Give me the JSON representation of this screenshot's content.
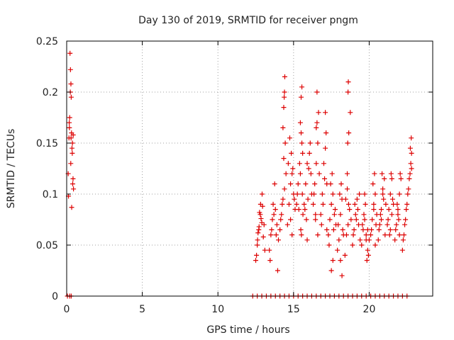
{
  "chart_data": {
    "type": "scatter",
    "title": "Day 130 of 2019, SRMTID for receiver pngm",
    "xlabel": "GPS time / hours",
    "ylabel": "SRMTID / TECUs",
    "xlim": [
      0,
      24.2
    ],
    "ylim": [
      0,
      0.25
    ],
    "x_ticks": [
      0,
      5,
      10,
      15,
      20
    ],
    "x_tick_labels": [
      "0",
      "5",
      "10",
      "15",
      "20"
    ],
    "y_ticks": [
      0,
      0.05,
      0.1,
      0.15,
      0.2,
      0.25
    ],
    "y_tick_labels": [
      "0",
      "0.05",
      "0.1",
      "0.15",
      "0.2",
      "0.25"
    ],
    "grid": true,
    "marker": "+",
    "color": "#dd0000",
    "series": [
      {
        "name": "SRMTID",
        "x": [
          0.1,
          0.15,
          0.18,
          0.2,
          0.22,
          0.25,
          0.28,
          0.3,
          0.32,
          0.35,
          0.38,
          0.4,
          0.42,
          0.45,
          0.12,
          0.17,
          0.27,
          0.33,
          0.37,
          0.43,
          0.24,
          0.29,
          12.5,
          12.6,
          12.7,
          12.8,
          12.9,
          13.0,
          13.1,
          12.55,
          12.65,
          12.75,
          12.85,
          12.95,
          13.05,
          12.62,
          12.72,
          12.82,
          12.92,
          13.4,
          13.5,
          13.6,
          13.7,
          13.8,
          13.9,
          14.0,
          13.45,
          13.55,
          13.65,
          13.75,
          13.85,
          13.95,
          14.1,
          14.2,
          14.3,
          14.4,
          14.5,
          14.15,
          14.25,
          14.35,
          14.45,
          14.3,
          14.35,
          14.4,
          14.42,
          14.38,
          14.6,
          14.7,
          14.8,
          14.9,
          15.0,
          15.1,
          14.65,
          14.75,
          14.85,
          14.95,
          15.05,
          14.8,
          14.9,
          15.2,
          15.3,
          15.4,
          15.5,
          15.6,
          15.25,
          15.35,
          15.45,
          15.55,
          15.5,
          15.55,
          15.45,
          15.58,
          15.62,
          15.52,
          15.48,
          15.7,
          15.8,
          15.9,
          16.0,
          16.1,
          16.2,
          15.75,
          15.85,
          15.95,
          16.05,
          16.15,
          15.9,
          16.3,
          16.4,
          16.5,
          16.6,
          16.7,
          16.35,
          16.45,
          16.55,
          16.65,
          16.5,
          16.55,
          16.6,
          16.45,
          16.8,
          16.9,
          17.0,
          17.1,
          17.2,
          16.85,
          16.95,
          17.05,
          17.15,
          17.1,
          17.2,
          17.3,
          17.4,
          17.5,
          17.6,
          17.7,
          17.8,
          17.35,
          17.45,
          17.55,
          17.65,
          17.75,
          17.5,
          17.6,
          17.9,
          18.0,
          18.1,
          18.2,
          18.3,
          17.95,
          18.05,
          18.15,
          18.25,
          18.1,
          18.2,
          18.4,
          18.5,
          18.6,
          18.7,
          18.8,
          18.45,
          18.55,
          18.65,
          18.75,
          18.6,
          18.62,
          18.58,
          18.55,
          18.64,
          18.9,
          19.0,
          19.1,
          19.2,
          19.3,
          19.4,
          18.95,
          19.05,
          19.15,
          19.25,
          19.35,
          19.5,
          19.6,
          19.7,
          19.8,
          19.9,
          20.0,
          19.55,
          19.65,
          19.75,
          19.85,
          19.95,
          19.7,
          19.8,
          19.9,
          20.1,
          20.2,
          20.3,
          20.4,
          20.5,
          20.15,
          20.25,
          20.35,
          20.45,
          20.3,
          20.4,
          20.6,
          20.7,
          20.8,
          20.9,
          21.0,
          21.1,
          20.65,
          20.75,
          20.85,
          20.95,
          21.05,
          20.8,
          20.9,
          21.2,
          21.3,
          21.4,
          21.5,
          21.6,
          21.25,
          21.35,
          21.45,
          21.55,
          21.4,
          21.5,
          21.7,
          21.8,
          21.9,
          22.0,
          22.1,
          21.75,
          21.85,
          21.95,
          22.05,
          21.9,
          22.0,
          22.2,
          22.3,
          22.4,
          22.5,
          22.6,
          22.7,
          22.8,
          22.25,
          22.35,
          22.45,
          22.55,
          22.65,
          22.75,
          22.72,
          22.78,
          22.8,
          0.05,
          0.2,
          0.3,
          12.3,
          12.6,
          12.9,
          13.2,
          13.5,
          13.8,
          14.1,
          14.4,
          14.7,
          15.0,
          15.3,
          15.6,
          15.9,
          16.2,
          16.5,
          16.8,
          17.1,
          17.4,
          17.7,
          18.0,
          18.3,
          18.6,
          18.9,
          19.2,
          19.5,
          19.8,
          20.1,
          20.4,
          20.7,
          21.0,
          21.3,
          21.6,
          21.9,
          22.2,
          22.5
        ],
        "y": [
          0.12,
          0.155,
          0.165,
          0.175,
          0.238,
          0.222,
          0.208,
          0.195,
          0.16,
          0.145,
          0.15,
          0.11,
          0.115,
          0.105,
          0.098,
          0.17,
          0.13,
          0.087,
          0.14,
          0.158,
          0.2,
          0.155,
          0.035,
          0.05,
          0.065,
          0.08,
          0.072,
          0.058,
          0.045,
          0.04,
          0.062,
          0.082,
          0.076,
          0.088,
          0.07,
          0.055,
          0.068,
          0.09,
          0.1,
          0.045,
          0.06,
          0.075,
          0.08,
          0.085,
          0.07,
          0.055,
          0.035,
          0.065,
          0.09,
          0.11,
          0.06,
          0.025,
          0.065,
          0.08,
          0.095,
          0.105,
          0.12,
          0.075,
          0.09,
          0.135,
          0.15,
          0.165,
          0.185,
          0.2,
          0.215,
          0.195,
          0.07,
          0.09,
          0.11,
          0.12,
          0.1,
          0.085,
          0.13,
          0.155,
          0.14,
          0.125,
          0.095,
          0.075,
          0.06,
          0.09,
          0.11,
          0.13,
          0.16,
          0.14,
          0.1,
          0.085,
          0.12,
          0.15,
          0.195,
          0.205,
          0.17,
          0.1,
          0.08,
          0.06,
          0.065,
          0.09,
          0.11,
          0.13,
          0.125,
          0.15,
          0.1,
          0.085,
          0.075,
          0.095,
          0.14,
          0.12,
          0.055,
          0.09,
          0.11,
          0.13,
          0.15,
          0.12,
          0.1,
          0.08,
          0.2,
          0.18,
          0.165,
          0.17,
          0.06,
          0.075,
          0.08,
          0.1,
          0.13,
          0.145,
          0.11,
          0.07,
          0.09,
          0.115,
          0.16,
          0.18,
          0.065,
          0.06,
          0.075,
          0.09,
          0.1,
          0.08,
          0.07,
          0.05,
          0.11,
          0.12,
          0.065,
          0.085,
          0.025,
          0.035,
          0.045,
          0.055,
          0.08,
          0.095,
          0.06,
          0.07,
          0.1,
          0.11,
          0.065,
          0.035,
          0.02,
          0.04,
          0.06,
          0.07,
          0.085,
          0.075,
          0.095,
          0.105,
          0.16,
          0.18,
          0.2,
          0.21,
          0.15,
          0.12,
          0.09,
          0.05,
          0.065,
          0.08,
          0.095,
          0.07,
          0.055,
          0.06,
          0.09,
          0.075,
          0.085,
          0.1,
          0.05,
          0.065,
          0.075,
          0.06,
          0.045,
          0.055,
          0.07,
          0.08,
          0.09,
          0.035,
          0.04,
          0.1,
          0.055,
          0.065,
          0.06,
          0.075,
          0.09,
          0.1,
          0.08,
          0.065,
          0.11,
          0.12,
          0.07,
          0.085,
          0.05,
          0.055,
          0.07,
          0.085,
          0.1,
          0.115,
          0.09,
          0.065,
          0.08,
          0.12,
          0.095,
          0.06,
          0.075,
          0.105,
          0.07,
          0.085,
          0.1,
          0.115,
          0.09,
          0.075,
          0.06,
          0.12,
          0.095,
          0.065,
          0.08,
          0.055,
          0.07,
          0.085,
          0.1,
          0.115,
          0.065,
          0.09,
          0.075,
          0.12,
          0.08,
          0.06,
          0.045,
          0.06,
          0.075,
          0.09,
          0.105,
          0.12,
          0.14,
          0.055,
          0.07,
          0.085,
          0.1,
          0.115,
          0.13,
          0.145,
          0.155,
          0.125,
          0,
          0,
          0,
          0,
          0,
          0,
          0,
          0,
          0,
          0,
          0,
          0,
          0,
          0,
          0,
          0,
          0,
          0,
          0,
          0,
          0,
          0,
          0,
          0,
          0,
          0,
          0,
          0,
          0,
          0,
          0,
          0,
          0,
          0,
          0,
          0,
          0,
          0
        ]
      }
    ]
  }
}
